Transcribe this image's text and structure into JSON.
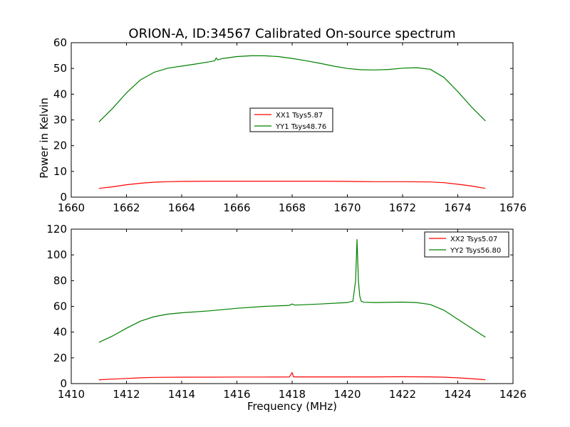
{
  "chart_data": {
    "title": "ORION-A, ID:34567 Calibrated On-source spectrum",
    "ylabel": "Power in Kelvin",
    "xlabel": "Frequency (MHz)",
    "panels": [
      {
        "type": "line",
        "xlim": [
          1660,
          1676
        ],
        "ylim": [
          0,
          60
        ],
        "xticks": [
          1660,
          1662,
          1664,
          1666,
          1668,
          1670,
          1672,
          1674,
          1676
        ],
        "yticks": [
          0,
          10,
          20,
          30,
          40,
          50,
          60
        ],
        "legend_position": "center",
        "series": [
          {
            "name": "XX1 Tsys5.87",
            "color": "#ff0000",
            "x": [
              1661.0,
              1661.5,
              1662.0,
              1662.5,
              1663.0,
              1663.5,
              1664.0,
              1665.0,
              1666.0,
              1667.0,
              1668.0,
              1669.0,
              1670.0,
              1671.0,
              1672.0,
              1673.0,
              1673.5,
              1674.0,
              1674.5,
              1675.0
            ],
            "y": [
              3.4,
              4.0,
              4.8,
              5.4,
              5.8,
              6.0,
              6.1,
              6.2,
              6.2,
              6.2,
              6.2,
              6.2,
              6.1,
              6.0,
              6.0,
              5.9,
              5.6,
              5.0,
              4.3,
              3.4
            ]
          },
          {
            "name": "YY1 Tsys48.76",
            "color": "#008000",
            "x": [
              1661.0,
              1661.5,
              1662.0,
              1662.5,
              1663.0,
              1663.5,
              1664.0,
              1664.5,
              1665.0,
              1665.2,
              1665.25,
              1665.3,
              1665.5,
              1666.0,
              1666.5,
              1667.0,
              1667.5,
              1668.0,
              1668.5,
              1669.0,
              1669.5,
              1670.0,
              1670.5,
              1671.0,
              1671.5,
              1672.0,
              1672.5,
              1673.0,
              1673.5,
              1674.0,
              1674.5,
              1675.0
            ],
            "y": [
              29.2,
              34.5,
              40.5,
              45.5,
              48.5,
              50.1,
              50.9,
              51.7,
              52.6,
              53.0,
              54.1,
              53.3,
              53.9,
              54.6,
              54.9,
              54.9,
              54.6,
              53.9,
              53.0,
              52.0,
              50.9,
              50.0,
              49.5,
              49.4,
              49.6,
              50.1,
              50.3,
              49.7,
              46.5,
              41.0,
              35.0,
              29.6
            ]
          }
        ]
      },
      {
        "type": "line",
        "xlim": [
          1410,
          1426
        ],
        "ylim": [
          0,
          120
        ],
        "xticks": [
          1410,
          1412,
          1414,
          1416,
          1418,
          1420,
          1422,
          1424,
          1426
        ],
        "yticks": [
          0,
          20,
          40,
          60,
          80,
          100,
          120
        ],
        "legend_position": "upper right",
        "series": [
          {
            "name": "XX2 Tsys5.07",
            "color": "#ff0000",
            "x": [
              1411.0,
              1411.5,
              1412.0,
              1412.5,
              1413.0,
              1414.0,
              1415.0,
              1416.0,
              1417.0,
              1417.9,
              1418.0,
              1418.05,
              1418.1,
              1419.0,
              1420.0,
              1421.0,
              1422.0,
              1423.0,
              1423.5,
              1424.0,
              1424.5,
              1425.0
            ],
            "y": [
              3.0,
              3.5,
              4.0,
              4.5,
              4.8,
              5.0,
              5.0,
              5.1,
              5.1,
              5.2,
              8.5,
              5.2,
              5.2,
              5.2,
              5.2,
              5.2,
              5.3,
              5.2,
              5.0,
              4.5,
              3.8,
              3.0
            ]
          },
          {
            "name": "YY2 Tsys56.80",
            "color": "#008000",
            "x": [
              1411.0,
              1411.5,
              1412.0,
              1412.5,
              1413.0,
              1413.5,
              1414.0,
              1415.0,
              1416.0,
              1417.0,
              1417.9,
              1418.0,
              1418.1,
              1419.0,
              1420.0,
              1420.2,
              1420.3,
              1420.35,
              1420.4,
              1420.45,
              1420.5,
              1420.6,
              1421.0,
              1422.0,
              1422.5,
              1423.0,
              1423.5,
              1424.0,
              1424.5,
              1425.0
            ],
            "y": [
              32.0,
              37.0,
              43.0,
              48.5,
              52.0,
              54.0,
              55.0,
              56.5,
              58.5,
              60.0,
              60.8,
              61.8,
              61.0,
              61.8,
              63.0,
              64.0,
              80.0,
              112.0,
              80.0,
              68.0,
              64.0,
              63.2,
              63.0,
              63.3,
              63.0,
              61.5,
              57.0,
              50.0,
              43.0,
              36.0
            ]
          }
        ]
      }
    ]
  }
}
